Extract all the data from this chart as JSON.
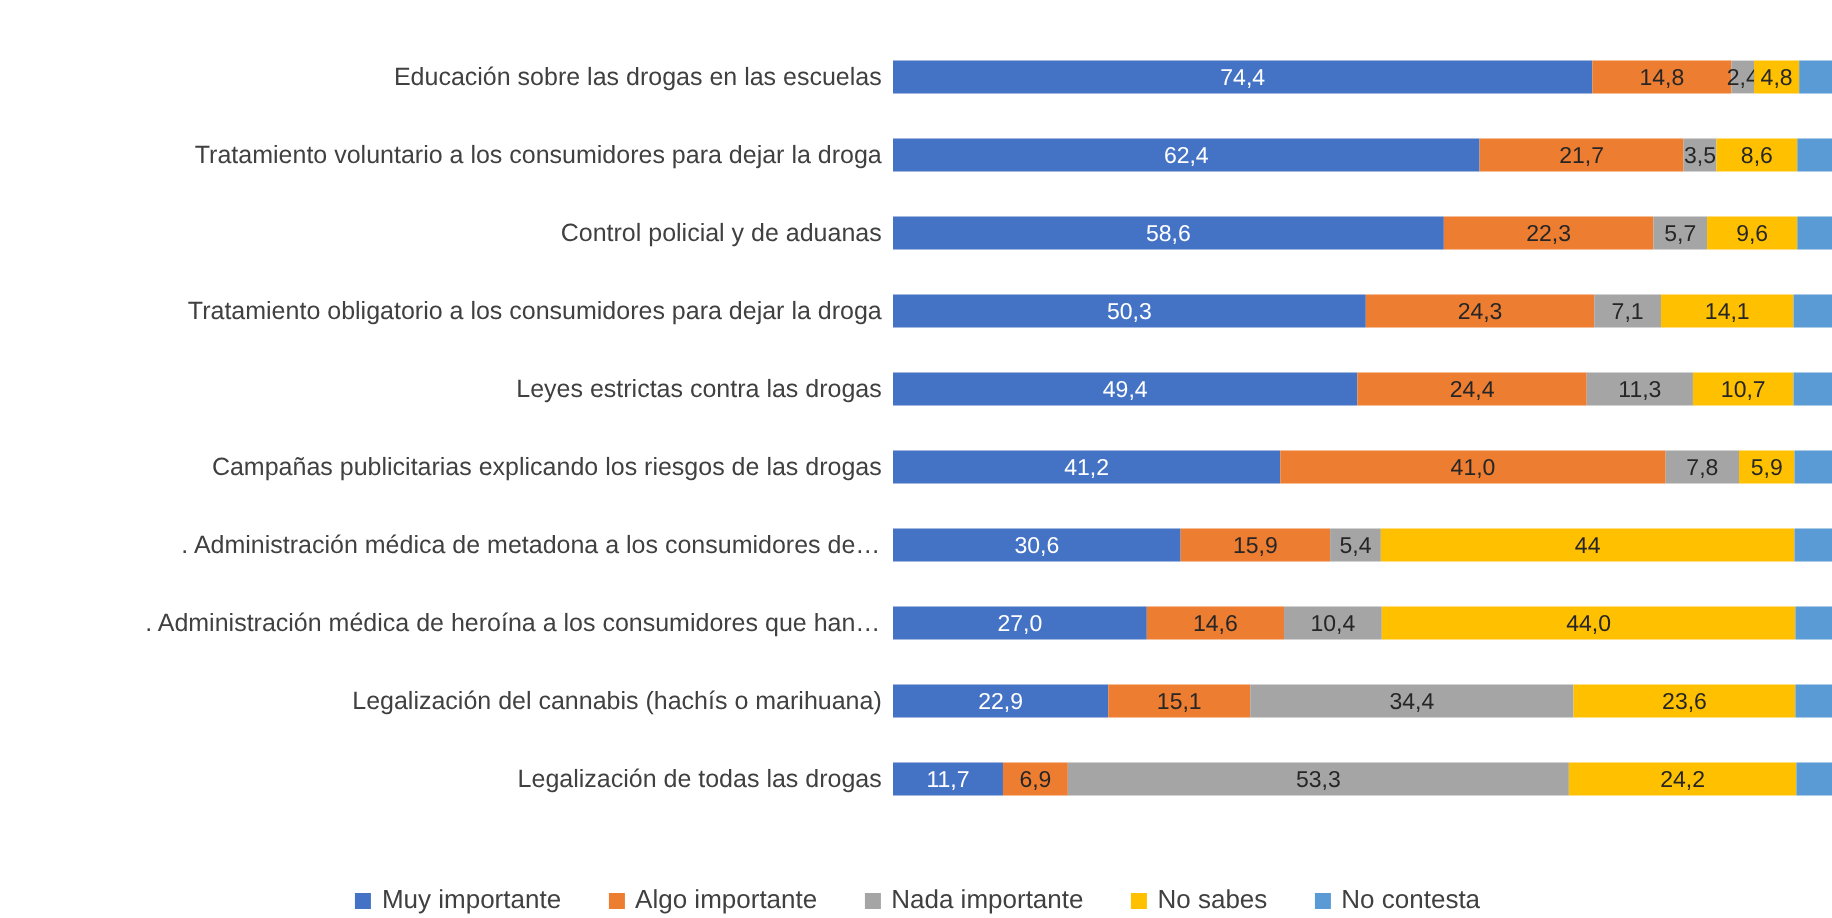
{
  "chart_data": {
    "type": "bar",
    "orientation": "horizontal",
    "stacked": true,
    "legend": "bottom",
    "tick_labels": "y",
    "xlim": [
      0,
      100
    ],
    "categories": [
      "Educación sobre las drogas en las escuelas",
      "Tratamiento voluntario a los consumidores para dejar la droga",
      "Control policial y de aduanas",
      "Tratamiento obligatorio a los consumidores para dejar la droga",
      "Leyes estrictas contra las drogas",
      "Campañas publicitarias explicando los riesgos de las drogas",
      ". Administración médica de metadona a los consumidores de…",
      ". Administración médica de heroína a los consumidores que han…",
      "Legalización del cannabis (hachís o marihuana)",
      "Legalización de todas las drogas"
    ],
    "series": [
      {
        "name": "Muy importante",
        "color": "#4472c4",
        "values": [
          74.4,
          62.4,
          58.6,
          50.3,
          49.4,
          41.2,
          30.6,
          27.0,
          22.9,
          11.7
        ],
        "value_labels": [
          "74,4",
          "62,4",
          "58,6",
          "50,3",
          "49,4",
          "41,2",
          "30,6",
          "27,0",
          "22,9",
          "11,7"
        ]
      },
      {
        "name": "Algo importante",
        "color": "#ed7d31",
        "values": [
          14.8,
          21.7,
          22.3,
          24.3,
          24.4,
          41.0,
          15.9,
          14.6,
          15.1,
          6.9
        ],
        "value_labels": [
          "14,8",
          "21,7",
          "22,3",
          "24,3",
          "24,4",
          "41,0",
          "15,9",
          "14,6",
          "15,1",
          "6,9"
        ]
      },
      {
        "name": "Nada importante",
        "color": "#a5a5a5",
        "values": [
          2.4,
          3.5,
          5.7,
          7.1,
          11.3,
          7.8,
          5.4,
          10.4,
          34.4,
          53.3
        ],
        "value_labels": [
          "2,4",
          "3,5",
          "5,7",
          "7,1",
          "11,3",
          "7,8",
          "5,4",
          "10,4",
          "34,4",
          "53,3"
        ]
      },
      {
        "name": "No sabes",
        "color": "#ffc000",
        "values": [
          4.8,
          8.6,
          9.6,
          14.1,
          10.7,
          5.9,
          44,
          44.0,
          23.6,
          24.2
        ],
        "value_labels": [
          "4,8",
          "8,6",
          "9,6",
          "14,1",
          "10,7",
          "5,9",
          "44",
          "44,0",
          "23,6",
          "24,2"
        ]
      },
      {
        "name": "No contesta",
        "color": "#5b9bd5",
        "values": [
          3.6,
          3.8,
          3.8,
          4.2,
          4.2,
          4.1,
          4.1,
          4.0,
          4.0,
          3.9
        ],
        "value_labels": [
          null,
          null,
          null,
          null,
          null,
          null,
          null,
          null,
          null,
          null
        ]
      }
    ]
  }
}
